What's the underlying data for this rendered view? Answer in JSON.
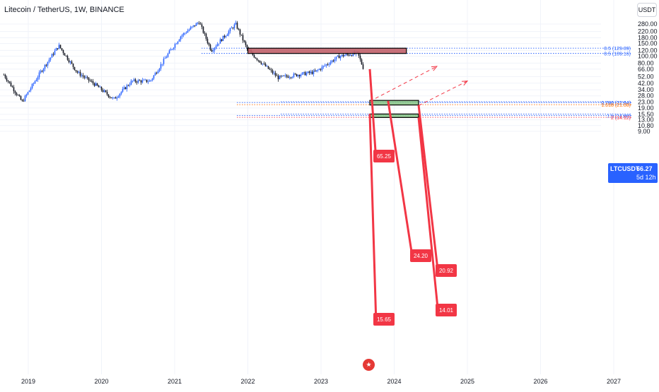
{
  "header": {
    "title": "Litecoin / TetherUS, 1W, BINANCE",
    "unit_badge": "USDT"
  },
  "price_tag": {
    "symbol": "LTCUSDT",
    "value": "66.27",
    "countdown": "5d 12h"
  },
  "event_flag": {
    "icon": "us-flag-icon"
  },
  "colors": {
    "up_candle": "#2962ff",
    "down_candle": "#131722",
    "supply_zone": "#c0606a",
    "demand_zone": "#8bc58a",
    "callout": "#f23645",
    "fib_blue": "#2962ff",
    "fib_orange": "#ff6d00",
    "fib_red": "#f23645"
  },
  "chart_data": {
    "type": "candlestick",
    "title": "Litecoin / TetherUS, 1W, BINANCE",
    "y_scale": "log",
    "ylim": [
      9,
      300
    ],
    "y_ticks": [
      "280.00",
      "220.00",
      "180.00",
      "150.00",
      "120.00",
      "100.00",
      "80.00",
      "66.00",
      "52.00",
      "42.00",
      "34.00",
      "28.00",
      "23.00",
      "19.00",
      "15.50",
      "13.00",
      "10.80",
      "9.00"
    ],
    "x_ticks": [
      "2019",
      "2020",
      "2021",
      "2022",
      "2023",
      "2024",
      "2025",
      "2026",
      "2027"
    ],
    "series": [
      {
        "x": [
          "2018-09",
          "2018-12",
          "2019-03",
          "2019-06",
          "2019-09",
          "2019-12",
          "2020-03",
          "2020-06",
          "2020-09",
          "2020-12",
          "2021-02",
          "2021-05",
          "2021-07",
          "2021-11",
          "2022-01",
          "2022-06",
          "2022-09",
          "2022-12",
          "2023-04",
          "2023-07",
          "2023-08"
        ],
        "y": [
          55,
          23,
          60,
          140,
          60,
          40,
          25,
          45,
          45,
          110,
          190,
          300,
          120,
          280,
          120,
          50,
          55,
          60,
          100,
          110,
          66
        ]
      }
    ],
    "zones": [
      {
        "type": "supply",
        "from": "2022-01",
        "to": "2024-03",
        "low": 109,
        "high": 129
      },
      {
        "type": "demand",
        "from": "2023-09",
        "to": "2024-05",
        "low": 20.9,
        "high": 24.2
      },
      {
        "type": "demand",
        "from": "2023-09",
        "to": "2024-05",
        "low": 14.0,
        "high": 15.65
      }
    ],
    "levels": [
      {
        "price": 129.09,
        "label": "0.5 (129.09)",
        "color": "blue"
      },
      {
        "price": 109.16,
        "label": "0.5 (109.16)",
        "color": "blue"
      },
      {
        "price": 23.2,
        "label": "",
        "color": "blue"
      },
      {
        "price": 22.6,
        "label": "0.786 (22.64)",
        "color": "blue"
      },
      {
        "price": 21.1,
        "label": "1.618 (21.08)",
        "color": "orange"
      },
      {
        "price": 15.6,
        "label": "",
        "color": "blue"
      },
      {
        "price": 14.9,
        "label": "1.5 (14.88)",
        "color": "blue"
      },
      {
        "price": 14.1,
        "label": "2 (14.12)",
        "color": "red"
      }
    ],
    "callouts": [
      "65.25",
      "24.20",
      "20.92",
      "15.65",
      "14.01"
    ],
    "arrows": [
      {
        "from_date": "2023-09",
        "from_price": 23.5,
        "to_date": "2024-08",
        "to_price": 72
      },
      {
        "from_date": "2024-05",
        "from_price": 20.5,
        "to_date": "2025-01",
        "to_price": 45
      }
    ]
  }
}
